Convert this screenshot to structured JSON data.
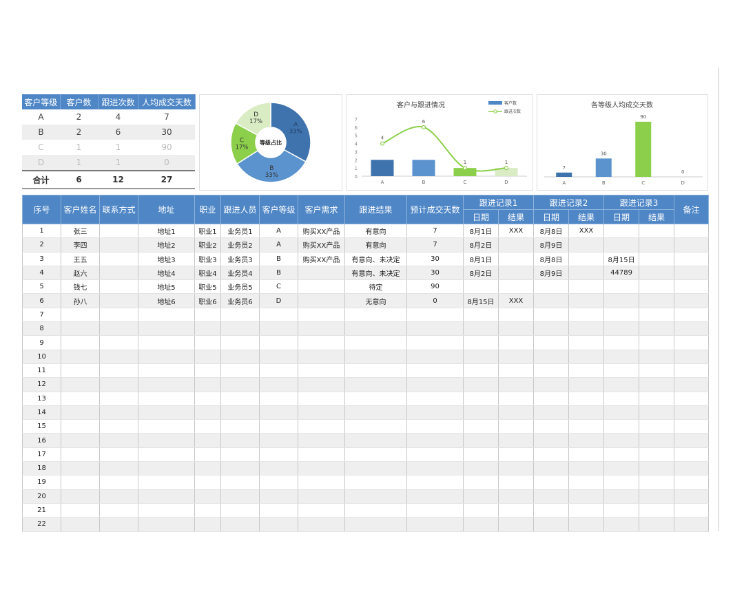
{
  "summary": {
    "headers": [
      "客户等级",
      "客户数",
      "跟进次数",
      "人均成交天数"
    ],
    "rows": [
      [
        "A",
        "2",
        "4",
        "7"
      ],
      [
        "B",
        "2",
        "6",
        "30"
      ],
      [
        "C",
        "1",
        "1",
        "90"
      ],
      [
        "D",
        "1",
        "1",
        "0"
      ]
    ],
    "total": [
      "合计",
      "6",
      "12",
      "27"
    ]
  },
  "chart_data": [
    {
      "type": "pie",
      "title": "等级占比",
      "categories": [
        "A",
        "B",
        "C",
        "D"
      ],
      "values": [
        33,
        33,
        17,
        17
      ],
      "labels": [
        "33%",
        "33%",
        "17%",
        "17%"
      ],
      "colors": [
        "#3f73ad",
        "#5b93ce",
        "#8ccf4a",
        "#d9ecc4"
      ],
      "donut": true
    },
    {
      "type": "bar",
      "title": "客户与跟进情况",
      "categories": [
        "A",
        "B",
        "C",
        "D"
      ],
      "series": [
        {
          "name": "客户数",
          "values": [
            2,
            2,
            1,
            1
          ],
          "kind": "bar",
          "color": "#4e86c6"
        },
        {
          "name": "跟进次数",
          "values": [
            4,
            6,
            1,
            1
          ],
          "kind": "line",
          "color": "#8ccf4a"
        }
      ],
      "ylim": [
        0,
        7
      ],
      "yticks": [
        "0",
        "1",
        "2",
        "3",
        "4",
        "5",
        "6",
        "7"
      ],
      "bar_colors": [
        "#3f73ad",
        "#5b93ce",
        "#8ccf4a",
        "#d9ecc4"
      ],
      "legend": "top-right",
      "grid": false
    },
    {
      "type": "bar",
      "title": "各等级人均成交天数",
      "categories": [
        "A",
        "B",
        "C",
        "D"
      ],
      "values": [
        7,
        30,
        90,
        0
      ],
      "data_labels": [
        "7",
        "30",
        "90",
        "0"
      ],
      "colors": [
        "#3f73ad",
        "#5b93ce",
        "#8ccf4a",
        "#d9ecc4"
      ],
      "ylim": [
        0,
        100
      ],
      "grid": false
    }
  ],
  "table": {
    "headers": {
      "seq": "序号",
      "name": "客户姓名",
      "contact": "联系方式",
      "address": "地址",
      "job": "职业",
      "staff": "跟进人员",
      "level": "客户等级",
      "need": "客户需求",
      "result": "跟进结果",
      "days": "预计成交天数",
      "rec1": "跟进记录1",
      "rec2": "跟进记录2",
      "rec3": "跟进记录3",
      "date": "日期",
      "res": "结果",
      "note": "备注"
    },
    "rows": [
      [
        "1",
        "张三",
        "",
        "地址1",
        "职业1",
        "业务员1",
        "A",
        "购买XX产品",
        "有意向",
        "7",
        "8月1日",
        "XXX",
        "8月8日",
        "XXX",
        "",
        "",
        ""
      ],
      [
        "2",
        "李四",
        "",
        "地址2",
        "职业2",
        "业务员2",
        "A",
        "购买XX产品",
        "有意向",
        "7",
        "8月2日",
        "",
        "8月9日",
        "",
        "",
        "",
        ""
      ],
      [
        "3",
        "王五",
        "",
        "地址3",
        "职业3",
        "业务员3",
        "B",
        "购买XX产品",
        "有意向、未决定",
        "30",
        "8月1日",
        "",
        "8月8日",
        "",
        "8月15日",
        "",
        ""
      ],
      [
        "4",
        "赵六",
        "",
        "地址4",
        "职业4",
        "业务员4",
        "B",
        "",
        "有意向、未决定",
        "30",
        "8月2日",
        "",
        "8月9日",
        "",
        "44789",
        "",
        ""
      ],
      [
        "5",
        "钱七",
        "",
        "地址5",
        "职业5",
        "业务员5",
        "C",
        "",
        "待定",
        "90",
        "",
        "",
        "",
        "",
        "",
        "",
        ""
      ],
      [
        "6",
        "孙八",
        "",
        "地址6",
        "职业6",
        "业务员6",
        "D",
        "",
        "无意向",
        "0",
        "8月15日",
        "XXX",
        "",
        "",
        "",
        "",
        ""
      ],
      [
        "7"
      ],
      [
        "8"
      ],
      [
        "9"
      ],
      [
        "10"
      ],
      [
        "11"
      ],
      [
        "12"
      ],
      [
        "13"
      ],
      [
        "14"
      ],
      [
        "15"
      ],
      [
        "16"
      ],
      [
        "17"
      ],
      [
        "18"
      ],
      [
        "19"
      ],
      [
        "20"
      ],
      [
        "21"
      ],
      [
        "22"
      ]
    ]
  }
}
